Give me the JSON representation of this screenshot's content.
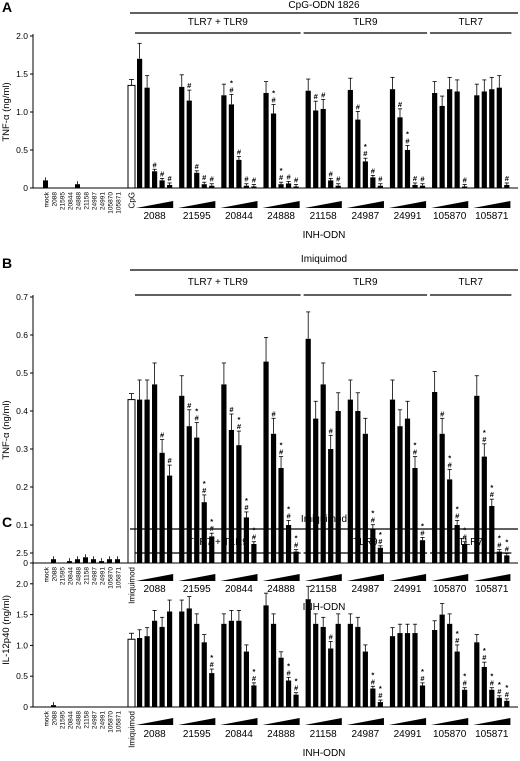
{
  "chart_data": [
    {
      "panel": "A",
      "type": "bar",
      "title": "CpG-ODN 1826",
      "ylabel": "TNF-α (ng/ml)",
      "ylim": [
        0,
        2.0
      ],
      "yticks": [
        "0",
        "0.5",
        "1.0",
        "1.5",
        "2.0"
      ],
      "xlabel": "INH-ODN",
      "baseline_labels": [
        "mock",
        "2088",
        "21595",
        "20844",
        "24888",
        "21158",
        "24987",
        "24991",
        "105870",
        "105871"
      ],
      "baseline_values": [
        0.1,
        0.0,
        0.0,
        0.0,
        0.05,
        0.0,
        0.0,
        0.0,
        0.0,
        0.0
      ],
      "control_label": "CpG",
      "control_value": 1.35,
      "groups": [
        {
          "label": "2088",
          "values": [
            1.7,
            1.32,
            0.22,
            0.1,
            0.04
          ],
          "marks": [
            "",
            "",
            "#",
            "#",
            "#"
          ]
        },
        {
          "label": "21595",
          "values": [
            1.33,
            1.15,
            0.2,
            0.05,
            0.03
          ],
          "marks": [
            "",
            "#",
            "#",
            "#",
            "#"
          ]
        },
        {
          "label": "20844",
          "values": [
            1.22,
            1.1,
            0.37,
            0.03,
            0.02
          ],
          "marks": [
            "",
            "*#",
            "#",
            "#",
            "#"
          ]
        },
        {
          "label": "24888",
          "values": [
            1.25,
            0.98,
            0.05,
            0.06,
            0.02
          ],
          "marks": [
            "",
            "*#",
            "*#",
            "#",
            "#"
          ]
        },
        {
          "label": "21158",
          "values": [
            1.28,
            1.02,
            1.04,
            0.1,
            0.03
          ],
          "marks": [
            "",
            "#",
            "#",
            "#",
            "#"
          ]
        },
        {
          "label": "24987",
          "values": [
            1.29,
            0.9,
            0.35,
            0.14,
            0.03
          ],
          "marks": [
            "",
            "#",
            "*#",
            "#",
            "#"
          ]
        },
        {
          "label": "24991",
          "values": [
            1.3,
            0.93,
            0.5,
            0.04,
            0.03
          ],
          "marks": [
            "",
            "#",
            "*#",
            "#",
            "#"
          ]
        },
        {
          "label": "105870",
          "values": [
            1.25,
            1.08,
            1.3,
            1.27,
            0.02
          ],
          "marks": [
            "",
            "",
            "",
            "",
            "#"
          ]
        },
        {
          "label": "105871",
          "values": [
            1.22,
            1.27,
            1.3,
            1.32,
            0.04
          ],
          "marks": [
            "",
            "",
            "",
            "",
            "#"
          ]
        }
      ],
      "sections": [
        {
          "label": "TLR7 + TLR9",
          "from": 0,
          "to": 3
        },
        {
          "label": "TLR9",
          "from": 4,
          "to": 6
        },
        {
          "label": "TLR7",
          "from": 7,
          "to": 8
        }
      ]
    },
    {
      "panel": "B",
      "type": "bar",
      "title": "Imiquimod",
      "ylabel": "TNF-α (ng/ml)",
      "ylim": [
        0,
        0.7
      ],
      "yticks": [
        "0",
        "0.1",
        "0.2",
        "0.3",
        "0.4",
        "0.5",
        "0.6",
        "0.7"
      ],
      "xlabel": "INH-ODN",
      "baseline_labels": [
        "mock",
        "2088",
        "21595",
        "20844",
        "24888",
        "21158",
        "24987",
        "24991",
        "105870",
        "105871"
      ],
      "baseline_values": [
        0.0,
        0.01,
        0.0,
        0.005,
        0.01,
        0.015,
        0.01,
        0.005,
        0.01,
        0.01
      ],
      "control_label": "Imiquimod",
      "control_value": 0.43,
      "groups": [
        {
          "label": "2088",
          "values": [
            0.43,
            0.43,
            0.47,
            0.29,
            0.23
          ],
          "marks": [
            "",
            "",
            "",
            "#",
            "#"
          ]
        },
        {
          "label": "21595",
          "values": [
            0.44,
            0.36,
            0.33,
            0.16,
            0.07
          ],
          "marks": [
            "",
            "#",
            "*#",
            "*#",
            "*#"
          ]
        },
        {
          "label": "20844",
          "values": [
            0.47,
            0.35,
            0.31,
            0.12,
            0.05
          ],
          "marks": [
            "",
            "#",
            "*#",
            "*#",
            "*#"
          ]
        },
        {
          "label": "24888",
          "values": [
            0.53,
            0.34,
            0.25,
            0.1,
            0.03
          ],
          "marks": [
            "",
            "#",
            "*#",
            "*#",
            "*#"
          ]
        },
        {
          "label": "21158",
          "values": [
            0.59,
            0.38,
            0.47,
            0.3,
            0.4
          ],
          "marks": [
            "",
            "",
            "",
            "#",
            ""
          ]
        },
        {
          "label": "24987",
          "values": [
            0.43,
            0.4,
            0.34,
            0.09,
            0.04
          ],
          "marks": [
            "",
            "",
            "",
            "*#",
            "*#"
          ]
        },
        {
          "label": "24991",
          "values": [
            0.43,
            0.36,
            0.38,
            0.25,
            0.06
          ],
          "marks": [
            "",
            "",
            "",
            "*#",
            "*#"
          ]
        },
        {
          "label": "105870",
          "values": [
            0.45,
            0.34,
            0.22,
            0.1,
            0.05
          ],
          "marks": [
            "",
            "#",
            "*#",
            "*#",
            "*#"
          ]
        },
        {
          "label": "105871",
          "values": [
            0.44,
            0.28,
            0.15,
            0.03,
            0.02
          ],
          "marks": [
            "",
            "*#",
            "*#",
            "*#",
            "*#"
          ]
        }
      ],
      "sections": [
        {
          "label": "TLR7 + TLR9",
          "from": 0,
          "to": 3
        },
        {
          "label": "TLR9",
          "from": 4,
          "to": 6
        },
        {
          "label": "TLR7",
          "from": 7,
          "to": 8
        }
      ]
    },
    {
      "panel": "C",
      "type": "bar",
      "title": "Imiquimod",
      "ylabel": "IL-12p40 (ng/ml)",
      "ylim": [
        0,
        2.5
      ],
      "yticks": [
        "0",
        "0.5",
        "1.0",
        "1.5",
        "2.0",
        "2.5"
      ],
      "xlabel": "INH-ODN",
      "baseline_labels": [
        "mock",
        "2088",
        "21595",
        "20844",
        "24888",
        "21158",
        "24987",
        "24991",
        "105870",
        "105871"
      ],
      "baseline_values": [
        0.0,
        0.03,
        0.0,
        0.0,
        0.0,
        0.0,
        0.0,
        0.0,
        0.0,
        0.0
      ],
      "control_label": "Imiquimod",
      "control_value": 1.1,
      "groups": [
        {
          "label": "2088",
          "values": [
            1.12,
            1.15,
            1.4,
            1.3,
            1.55
          ],
          "marks": [
            "",
            "",
            "",
            "",
            ""
          ]
        },
        {
          "label": "21595",
          "values": [
            1.55,
            1.6,
            1.35,
            1.05,
            0.55
          ],
          "marks": [
            "",
            "",
            "",
            "",
            "*#"
          ]
        },
        {
          "label": "20844",
          "values": [
            1.35,
            1.4,
            1.4,
            0.9,
            0.35
          ],
          "marks": [
            "",
            "",
            "",
            "",
            "*#"
          ]
        },
        {
          "label": "24888",
          "values": [
            1.65,
            1.35,
            0.8,
            0.43,
            0.2
          ],
          "marks": [
            "",
            "",
            "",
            "*#",
            "*#"
          ]
        },
        {
          "label": "21158",
          "values": [
            1.75,
            1.35,
            1.3,
            0.95,
            1.35
          ],
          "marks": [
            "",
            "",
            "",
            "#",
            ""
          ]
        },
        {
          "label": "24987",
          "values": [
            1.35,
            1.3,
            0.9,
            0.3,
            0.08
          ],
          "marks": [
            "",
            "",
            "",
            "*#",
            "*#"
          ]
        },
        {
          "label": "24991",
          "values": [
            1.15,
            1.2,
            1.2,
            1.2,
            0.35
          ],
          "marks": [
            "",
            "",
            "",
            "",
            "*#"
          ]
        },
        {
          "label": "105870",
          "values": [
            1.25,
            1.5,
            1.35,
            0.9,
            0.28
          ],
          "marks": [
            "",
            "",
            "",
            "*#",
            "*#"
          ]
        },
        {
          "label": "105871",
          "values": [
            1.05,
            0.65,
            0.28,
            0.15,
            0.1
          ],
          "marks": [
            "",
            "*#",
            "*#",
            "*#",
            "*#"
          ]
        }
      ],
      "sections": [
        {
          "label": "TLR7 + TLR9",
          "from": 0,
          "to": 3
        },
        {
          "label": "TLR9",
          "from": 4,
          "to": 6
        },
        {
          "label": "TLR7",
          "from": 7,
          "to": 8
        }
      ]
    }
  ],
  "colors": {
    "bar_fill": "#000000",
    "control_fill": "#ffffff",
    "axis": "#000000"
  }
}
